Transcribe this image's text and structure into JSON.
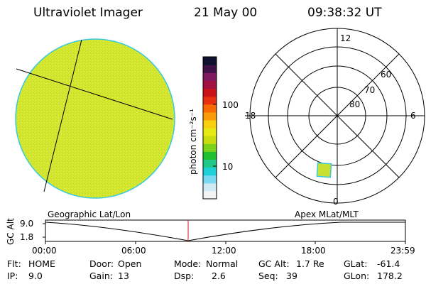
{
  "header": {
    "instrument": "Ultraviolet Imager",
    "date": "21 May 00",
    "time": "09:38:32 UT"
  },
  "colorbar": {
    "unit_label": "photon cm⁻²s⁻¹",
    "tick_labels": [
      "100",
      "10"
    ],
    "colors": [
      "#f4f4f4",
      "#d0eaf5",
      "#79d9f0",
      "#20d0d8",
      "#22c88a",
      "#20c030",
      "#7ad21a",
      "#c8dc10",
      "#e8e814",
      "#f8d010",
      "#f89c08",
      "#f86a06",
      "#e83010",
      "#c81018",
      "#a01040",
      "#801860",
      "#401048",
      "#101030"
    ]
  },
  "polar": {
    "mlt_labels": {
      "top": "12",
      "left": "18",
      "right": "6",
      "bottom": "0"
    },
    "lat_labels": [
      "60",
      "70",
      "80"
    ]
  },
  "timeline": {
    "y_label": "GC Alt",
    "y_ticks": [
      "9.0",
      "1.8"
    ],
    "left_title": "Geographic Lat/Lon",
    "right_title": "Apex MLat/MLT",
    "x_ticks": [
      "00:00",
      "06:00",
      "12:00",
      "18:00",
      "23:59"
    ],
    "marker_time": "09:38:32",
    "marker_color": "#d02020"
  },
  "info": {
    "flt_label": "Flt:",
    "flt_value": "HOME",
    "ip_label": "IP:",
    "ip_value": "9.0",
    "door_label": "Door:",
    "door_value": "Open",
    "gain_label": "Gain:",
    "gain_value": "13",
    "mode_label": "Mode:",
    "mode_value": "Normal",
    "dsp_label": "Dsp:",
    "dsp_value": "2.6",
    "gcalt_label": "GC Alt:",
    "gcalt_value": "1.7 Re",
    "seq_label": "Seq:",
    "seq_value": "39",
    "glat_label": "GLat:",
    "glat_value": "-61.4",
    "glon_label": "GLon:",
    "glon_value": "178.2"
  },
  "image_colors": {
    "disk_fill": "#d8e830",
    "disk_rim": "#38c8e0",
    "patch_fill": "#c8e030"
  }
}
